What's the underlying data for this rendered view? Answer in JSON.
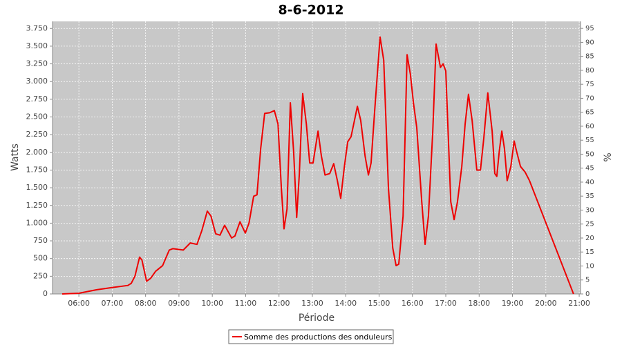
{
  "chart_data": {
    "type": "line",
    "title": "8-6-2012",
    "x_label": "Période",
    "y_label": "Watts",
    "y2_label": "%",
    "xlim": [
      5.21,
      21.04
    ],
    "xticks": [
      {
        "value": 6,
        "label": "06:00"
      },
      {
        "value": 7,
        "label": "07:00"
      },
      {
        "value": 8,
        "label": "08:00"
      },
      {
        "value": 9,
        "label": "09:00"
      },
      {
        "value": 10,
        "label": "10:00"
      },
      {
        "value": 11,
        "label": "11:00"
      },
      {
        "value": 12,
        "label": "12:00"
      },
      {
        "value": 13,
        "label": "13:00"
      },
      {
        "value": 14,
        "label": "14:00"
      },
      {
        "value": 15,
        "label": "15:00"
      },
      {
        "value": 16,
        "label": "16:00"
      },
      {
        "value": 17,
        "label": "17:00"
      },
      {
        "value": 18,
        "label": "18:00"
      },
      {
        "value": 19,
        "label": "19:00"
      },
      {
        "value": 20,
        "label": "20:00"
      },
      {
        "value": 21,
        "label": "21:00"
      }
    ],
    "ylim": [
      0,
      3850
    ],
    "yticks": [
      0,
      250,
      500,
      750,
      {
        "value": 1000,
        "label": "1.000"
      },
      {
        "value": 1250,
        "label": "1.250"
      },
      {
        "value": 1500,
        "label": "1.500"
      },
      {
        "value": 1750,
        "label": "1.750"
      },
      {
        "value": 2000,
        "label": "2.000"
      },
      {
        "value": 2250,
        "label": "2.250"
      },
      {
        "value": 2500,
        "label": "2.500"
      },
      {
        "value": 2750,
        "label": "2.750"
      },
      {
        "value": 3000,
        "label": "3.000"
      },
      {
        "value": 3250,
        "label": "3.250"
      },
      {
        "value": 3500,
        "label": "3.500"
      },
      {
        "value": 3750,
        "label": "3.750"
      }
    ],
    "y2lim": [
      0,
      97.5
    ],
    "y2ticks": [
      0,
      5,
      10,
      15,
      20,
      25,
      30,
      35,
      40,
      45,
      50,
      55,
      60,
      65,
      70,
      75,
      80,
      85,
      90,
      95
    ],
    "grid": true,
    "legend": "bottom",
    "series": [
      {
        "name": "Somme des productions des onduleurs",
        "color": "#ee0000",
        "x": [
          5.5,
          6.0,
          6.54,
          6.99,
          7.47,
          7.57,
          7.68,
          7.82,
          7.89,
          8.03,
          8.15,
          8.3,
          8.51,
          8.71,
          8.82,
          9.13,
          9.34,
          9.54,
          9.69,
          9.85,
          9.96,
          10.1,
          10.23,
          10.37,
          10.58,
          10.68,
          10.83,
          10.99,
          11.1,
          11.24,
          11.34,
          11.45,
          11.57,
          11.72,
          11.86,
          11.97,
          12.07,
          12.15,
          12.24,
          12.34,
          12.44,
          12.53,
          12.61,
          12.71,
          12.82,
          12.92,
          13.02,
          13.17,
          13.27,
          13.38,
          13.52,
          13.64,
          13.75,
          13.85,
          13.96,
          14.06,
          14.16,
          14.35,
          14.45,
          14.58,
          14.68,
          14.76,
          14.87,
          15.03,
          15.14,
          15.28,
          15.41,
          15.51,
          15.59,
          15.72,
          15.84,
          15.94,
          16.03,
          16.13,
          16.28,
          16.38,
          16.48,
          16.61,
          16.71,
          16.84,
          16.92,
          17.0,
          17.15,
          17.25,
          17.35,
          17.48,
          17.58,
          17.68,
          17.79,
          17.93,
          18.04,
          18.14,
          18.26,
          18.39,
          18.47,
          18.53,
          18.6,
          18.68,
          18.76,
          18.84,
          18.95,
          19.05,
          19.13,
          19.24,
          19.38,
          19.51,
          20.83
        ],
        "values": [
          0,
          10,
          60,
          90,
          120,
          150,
          250,
          520,
          480,
          180,
          220,
          320,
          400,
          620,
          640,
          620,
          720,
          700,
          900,
          1170,
          1100,
          850,
          830,
          970,
          790,
          820,
          1020,
          860,
          1000,
          1380,
          1400,
          2050,
          2550,
          2560,
          2590,
          2400,
          1500,
          920,
          1200,
          2700,
          2000,
          1080,
          1700,
          2830,
          2400,
          1850,
          1850,
          2300,
          1950,
          1680,
          1700,
          1840,
          1600,
          1350,
          1800,
          2150,
          2220,
          2650,
          2450,
          1950,
          1680,
          1850,
          2600,
          3630,
          3300,
          1500,
          650,
          400,
          420,
          1100,
          3380,
          3100,
          2700,
          2350,
          1300,
          700,
          1100,
          2300,
          3530,
          3200,
          3250,
          3150,
          1300,
          1050,
          1300,
          1800,
          2400,
          2820,
          2450,
          1750,
          1750,
          2200,
          2840,
          2300,
          1700,
          1660,
          2000,
          2300,
          2050,
          1600,
          1800,
          2160,
          2000,
          1800,
          1720,
          1600,
          0
        ]
      }
    ]
  }
}
